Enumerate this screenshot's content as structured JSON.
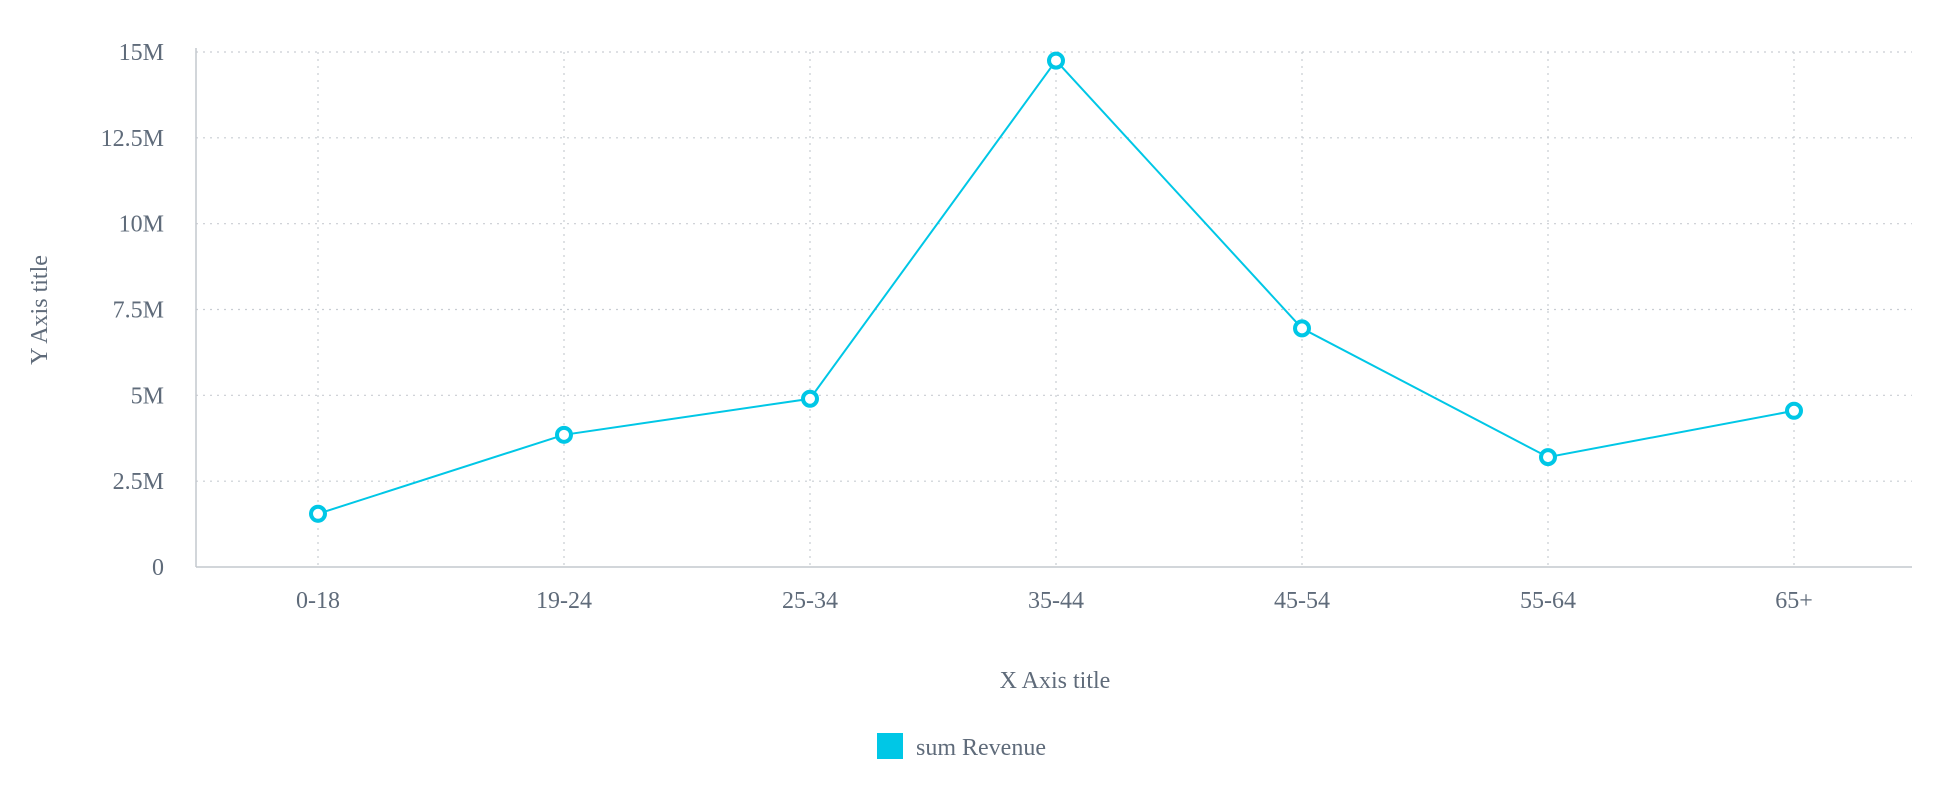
{
  "chart_data": {
    "type": "line",
    "categories": [
      "0-18",
      "19-24",
      "25-34",
      "35-44",
      "45-54",
      "55-64",
      "65+"
    ],
    "series": [
      {
        "name": "sum Revenue",
        "values": [
          1550000,
          3850000,
          4900000,
          14750000,
          6950000,
          3200000,
          4550000
        ],
        "color": "#00c7e6"
      }
    ],
    "xlabel": "X Axis title",
    "ylabel": "Y Axis title",
    "ylim": [
      0,
      15000000
    ],
    "yticks": [
      0,
      2500000,
      5000000,
      7500000,
      10000000,
      12500000,
      15000000
    ],
    "ytick_labels": [
      "0",
      "2.5M",
      "5M",
      "7.5M",
      "10M",
      "12.5M",
      "15M"
    ],
    "grid": true,
    "grid_style": "dotted",
    "legend_position": "bottom-center"
  },
  "colors": {
    "grid": "#c9cdd3",
    "axis": "#c4c8ce",
    "text": "#5f6b7a",
    "accent": "#00c7e6"
  }
}
